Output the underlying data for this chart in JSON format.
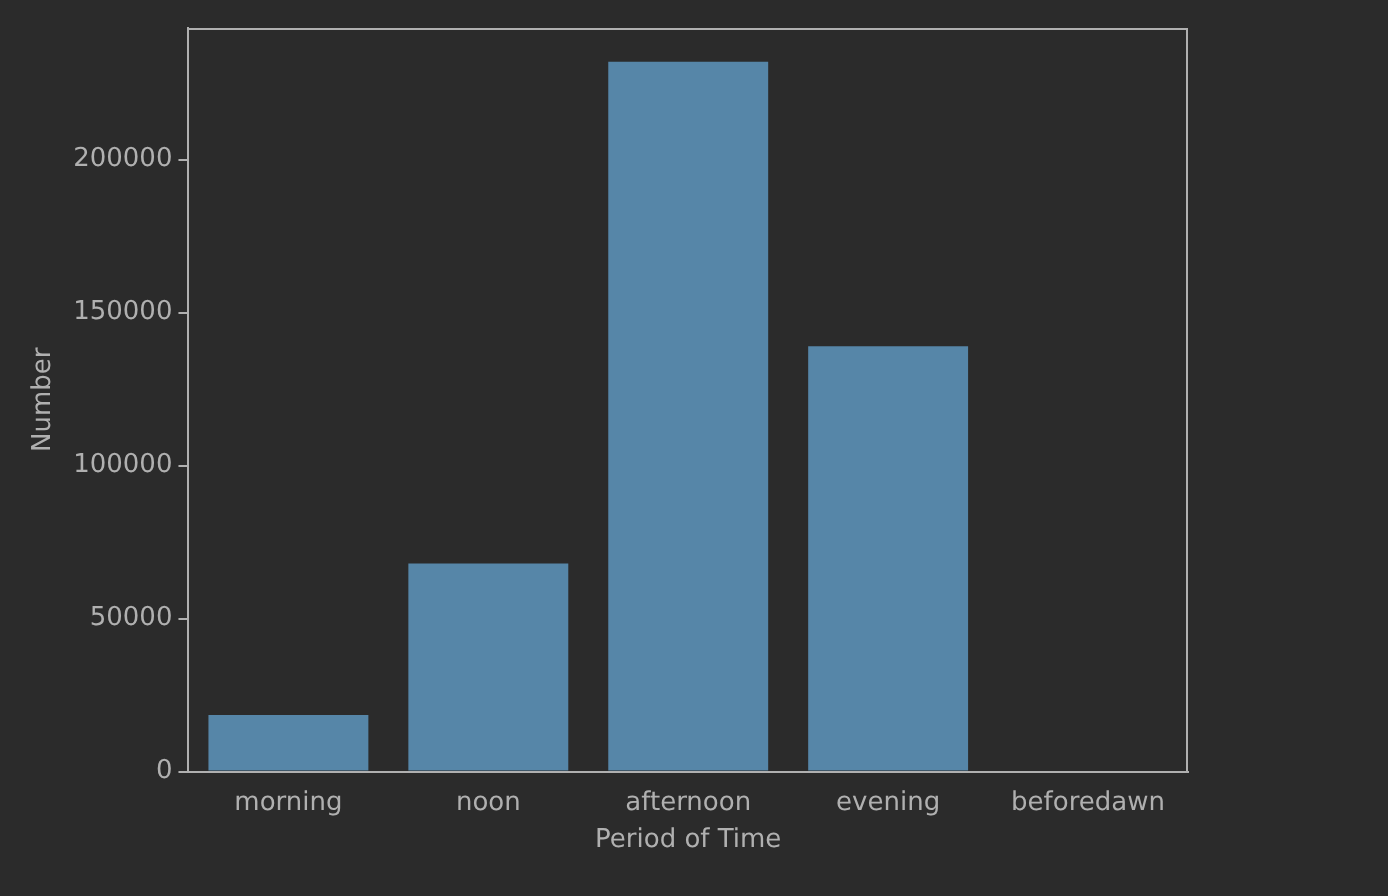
{
  "chart_data": {
    "type": "bar",
    "xlabel": "Period of Time",
    "ylabel": "Number",
    "categories": [
      "morning",
      "noon",
      "afternoon",
      "evening",
      "beforedawn"
    ],
    "values": [
      18500,
      68000,
      232000,
      139000,
      0
    ],
    "color": "#5686a8",
    "ylim": [
      0,
      243000
    ],
    "yticks": [
      0,
      50000,
      100000,
      150000,
      200000
    ],
    "grid": false,
    "legend": false
  }
}
